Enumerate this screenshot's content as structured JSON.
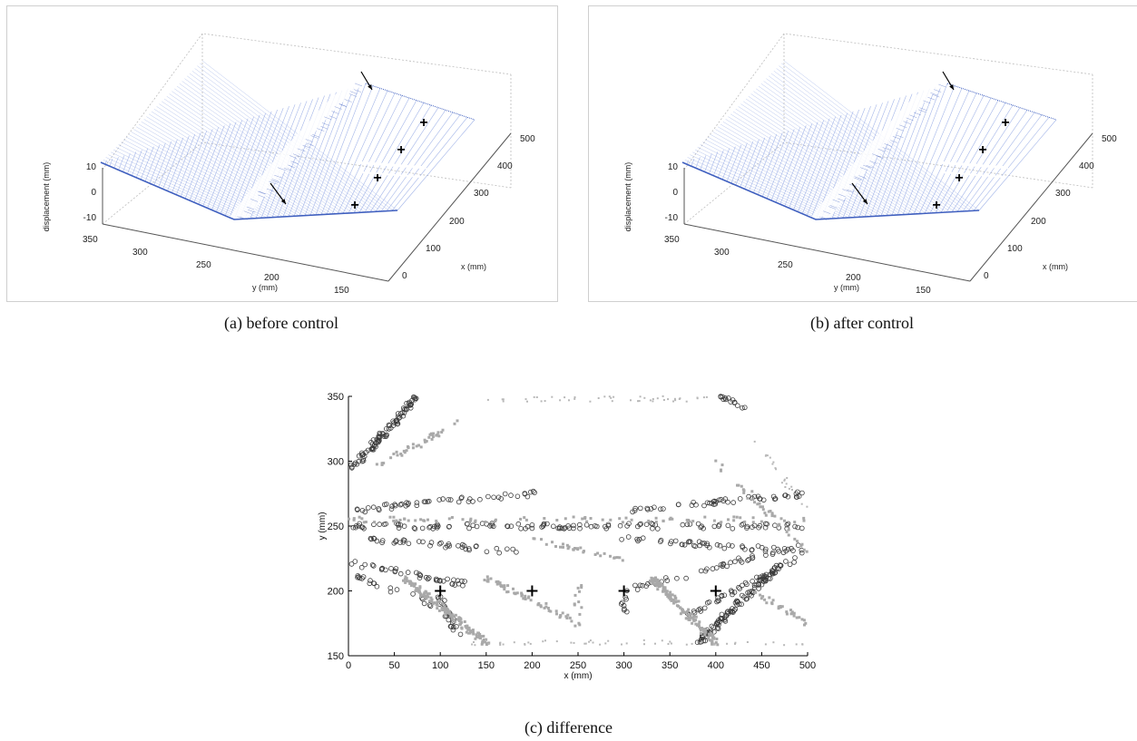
{
  "captions": {
    "a": "(a)  before control",
    "b": "(b)  after control",
    "c": "(c)  difference"
  },
  "colors": {
    "surface": "#3f5fbf",
    "surface_light": "#9aaee6",
    "marker": "#000000",
    "gray": "#a9a9a9"
  },
  "chart_data": [
    {
      "panel": "a",
      "type": "surface3d",
      "caption": "(a)  before control",
      "xlabel": "x (mm)",
      "ylabel": "y (mm)",
      "zlabel": "displacement (mm)",
      "x_ticks": [
        "0",
        "100",
        "200",
        "300",
        "400",
        "500"
      ],
      "y_ticks": [
        "350",
        "300",
        "250",
        "200",
        "150"
      ],
      "z_ticks": [
        "10",
        "0",
        "-10"
      ],
      "xlim": [
        0,
        500
      ],
      "ylim": [
        150,
        350
      ],
      "zlim": [
        -10,
        10
      ],
      "markers": [
        "+",
        "+",
        "+",
        "+"
      ],
      "arrows": 2
    },
    {
      "panel": "b",
      "type": "surface3d",
      "caption": "(b)  after control",
      "xlabel": "x (mm)",
      "ylabel": "y (mm)",
      "zlabel": "displacement (mm)",
      "x_ticks": [
        "0",
        "100",
        "200",
        "300",
        "400",
        "500"
      ],
      "y_ticks": [
        "350",
        "300",
        "250",
        "200",
        "150"
      ],
      "z_ticks": [
        "10",
        "0",
        "-10"
      ],
      "xlim": [
        0,
        500
      ],
      "ylim": [
        150,
        350
      ],
      "zlim": [
        -10,
        10
      ],
      "markers": [
        "+",
        "+",
        "+",
        "+"
      ],
      "arrows": 2
    },
    {
      "panel": "c",
      "type": "scatter",
      "caption": "(c)  difference",
      "xlabel": "x (mm)",
      "ylabel": "y (mm)",
      "xlim": [
        0,
        500
      ],
      "ylim": [
        150,
        350
      ],
      "x_ticks": [
        0,
        50,
        100,
        150,
        200,
        250,
        300,
        350,
        400,
        450,
        500
      ],
      "y_ticks": [
        150,
        200,
        250,
        300,
        350
      ],
      "grid": false,
      "actuators": [
        {
          "x": 100,
          "y": 200
        },
        {
          "x": 200,
          "y": 200
        },
        {
          "x": 300,
          "y": 200
        },
        {
          "x": 400,
          "y": 200
        }
      ],
      "series": [
        {
          "marker": "o",
          "color": "#3a3a3a",
          "clusters": [
            {
              "x0": 5,
              "y0": 295,
              "x1": 75,
              "y1": 350,
              "n": 90
            },
            {
              "x0": 0,
              "y0": 262,
              "x1": 200,
              "y1": 275,
              "n": 50
            },
            {
              "x0": 0,
              "y0": 250,
              "x1": 500,
              "y1": 250,
              "n": 120
            },
            {
              "x0": 20,
              "y0": 240,
              "x1": 190,
              "y1": 230,
              "n": 40
            },
            {
              "x0": 0,
              "y0": 222,
              "x1": 130,
              "y1": 205,
              "n": 40
            },
            {
              "x0": 10,
              "y0": 210,
              "x1": 90,
              "y1": 190,
              "n": 20
            },
            {
              "x0": 100,
              "y0": 195,
              "x1": 125,
              "y1": 160,
              "n": 24
            },
            {
              "x0": 300,
              "y0": 262,
              "x1": 500,
              "y1": 275,
              "n": 50
            },
            {
              "x0": 300,
              "y0": 240,
              "x1": 500,
              "y1": 230,
              "n": 50
            },
            {
              "x0": 300,
              "y0": 200,
              "x1": 490,
              "y1": 235,
              "n": 40
            },
            {
              "x0": 370,
              "y0": 180,
              "x1": 500,
              "y1": 230,
              "n": 40
            },
            {
              "x0": 380,
              "y0": 160,
              "x1": 470,
              "y1": 220,
              "n": 110
            },
            {
              "x0": 405,
              "y0": 350,
              "x1": 430,
              "y1": 340,
              "n": 14
            },
            {
              "x0": 300,
              "y0": 180,
              "x1": 300,
              "y1": 195,
              "n": 8
            }
          ]
        },
        {
          "marker": "square",
          "color": "#a9a9a9",
          "clusters": [
            {
              "x0": 30,
              "y0": 295,
              "x1": 120,
              "y1": 330,
              "n": 40
            },
            {
              "x0": 60,
              "y0": 210,
              "x1": 150,
              "y1": 160,
              "n": 150
            },
            {
              "x0": 150,
              "y0": 210,
              "x1": 250,
              "y1": 175,
              "n": 60
            },
            {
              "x0": 0,
              "y0": 255,
              "x1": 500,
              "y1": 255,
              "n": 80
            },
            {
              "x0": 330,
              "y0": 210,
              "x1": 400,
              "y1": 160,
              "n": 150
            },
            {
              "x0": 400,
              "y0": 300,
              "x1": 500,
              "y1": 230,
              "n": 40
            },
            {
              "x0": 195,
              "y0": 240,
              "x1": 300,
              "y1": 225,
              "n": 30
            },
            {
              "x0": 440,
              "y0": 200,
              "x1": 500,
              "y1": 175,
              "n": 30
            },
            {
              "x0": 250,
              "y0": 205,
              "x1": 250,
              "y1": 180,
              "n": 10
            }
          ]
        },
        {
          "marker": "dot",
          "color": "#b8b8b8",
          "clusters": [
            {
              "x0": 150,
              "y0": 348,
              "x1": 390,
              "y1": 348,
              "n": 45
            },
            {
              "x0": 100,
              "y0": 160,
              "x1": 500,
              "y1": 160,
              "n": 50
            },
            {
              "x0": 440,
              "y0": 320,
              "x1": 500,
              "y1": 260,
              "n": 20
            }
          ]
        }
      ]
    }
  ]
}
